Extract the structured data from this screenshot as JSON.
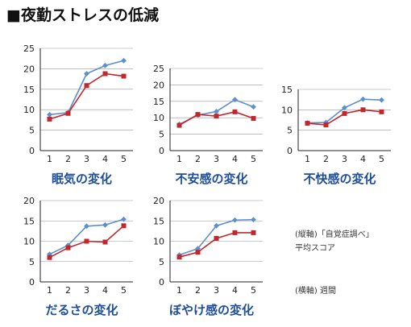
{
  "header": {
    "title": "■夜勤ストレスの低減"
  },
  "colors": {
    "series_blue": "#5b8fd1",
    "series_red": "#c0282d",
    "axis": "#222222",
    "subtitle": "#1f4e9c"
  },
  "notes": {
    "vertical_axis": "(縦軸)「自覚症調べ」",
    "vertical_axis_unit": "平均スコア",
    "horizontal_axis": "(横軸) 週間"
  },
  "chart_data": [
    {
      "type": "line",
      "title": "眠気の変化",
      "x": [
        1,
        2,
        3,
        4,
        5
      ],
      "ylim": [
        0,
        25
      ],
      "yticks": [
        0,
        5,
        10,
        15,
        20,
        25
      ],
      "grid": true,
      "series": [
        {
          "color": "#5b8fd1",
          "marker": "diamond",
          "values": [
            8.8,
            9.3,
            18.8,
            20.8,
            22.0
          ]
        },
        {
          "color": "#c0282d",
          "marker": "square",
          "values": [
            7.7,
            9.1,
            15.9,
            18.8,
            18.2
          ]
        }
      ]
    },
    {
      "type": "line",
      "title": "不安感の変化",
      "x": [
        1,
        2,
        3,
        4,
        5
      ],
      "ylim": [
        0,
        25
      ],
      "yticks": [
        0,
        5,
        10,
        15,
        20,
        25
      ],
      "grid": true,
      "series": [
        {
          "color": "#5b8fd1",
          "marker": "diamond",
          "values": [
            8.0,
            10.8,
            11.9,
            15.5,
            13.3
          ]
        },
        {
          "color": "#c0282d",
          "marker": "square",
          "values": [
            7.7,
            11.0,
            10.5,
            11.8,
            9.8
          ]
        }
      ]
    },
    {
      "type": "line",
      "title": "不快感の変化",
      "x": [
        1,
        2,
        3,
        4,
        5
      ],
      "ylim": [
        0,
        15
      ],
      "yticks": [
        0,
        5,
        10,
        15
      ],
      "grid": true,
      "series": [
        {
          "color": "#5b8fd1",
          "marker": "diamond",
          "values": [
            6.8,
            6.9,
            10.5,
            12.6,
            12.4
          ]
        },
        {
          "color": "#c0282d",
          "marker": "square",
          "values": [
            6.7,
            6.3,
            9.1,
            10.0,
            9.5
          ]
        }
      ]
    },
    {
      "type": "line",
      "title": "だるさの変化",
      "x": [
        1,
        2,
        3,
        4,
        5
      ],
      "ylim": [
        0,
        20
      ],
      "yticks": [
        0,
        5,
        10,
        15,
        20
      ],
      "grid": true,
      "series": [
        {
          "color": "#5b8fd1",
          "marker": "diamond",
          "values": [
            6.8,
            9.0,
            13.7,
            14.0,
            15.4
          ]
        },
        {
          "color": "#c0282d",
          "marker": "square",
          "values": [
            6.0,
            8.4,
            10.0,
            9.8,
            13.8
          ]
        }
      ]
    },
    {
      "type": "line",
      "title": "ぼやけ感の変化",
      "x": [
        1,
        2,
        3,
        4,
        5
      ],
      "ylim": [
        0,
        20
      ],
      "yticks": [
        0,
        5,
        10,
        15,
        20
      ],
      "grid": true,
      "series": [
        {
          "color": "#5b8fd1",
          "marker": "diamond",
          "values": [
            6.6,
            8.2,
            13.8,
            15.2,
            15.3
          ]
        },
        {
          "color": "#c0282d",
          "marker": "square",
          "values": [
            6.1,
            7.3,
            10.7,
            12.1,
            12.1
          ]
        }
      ]
    }
  ]
}
